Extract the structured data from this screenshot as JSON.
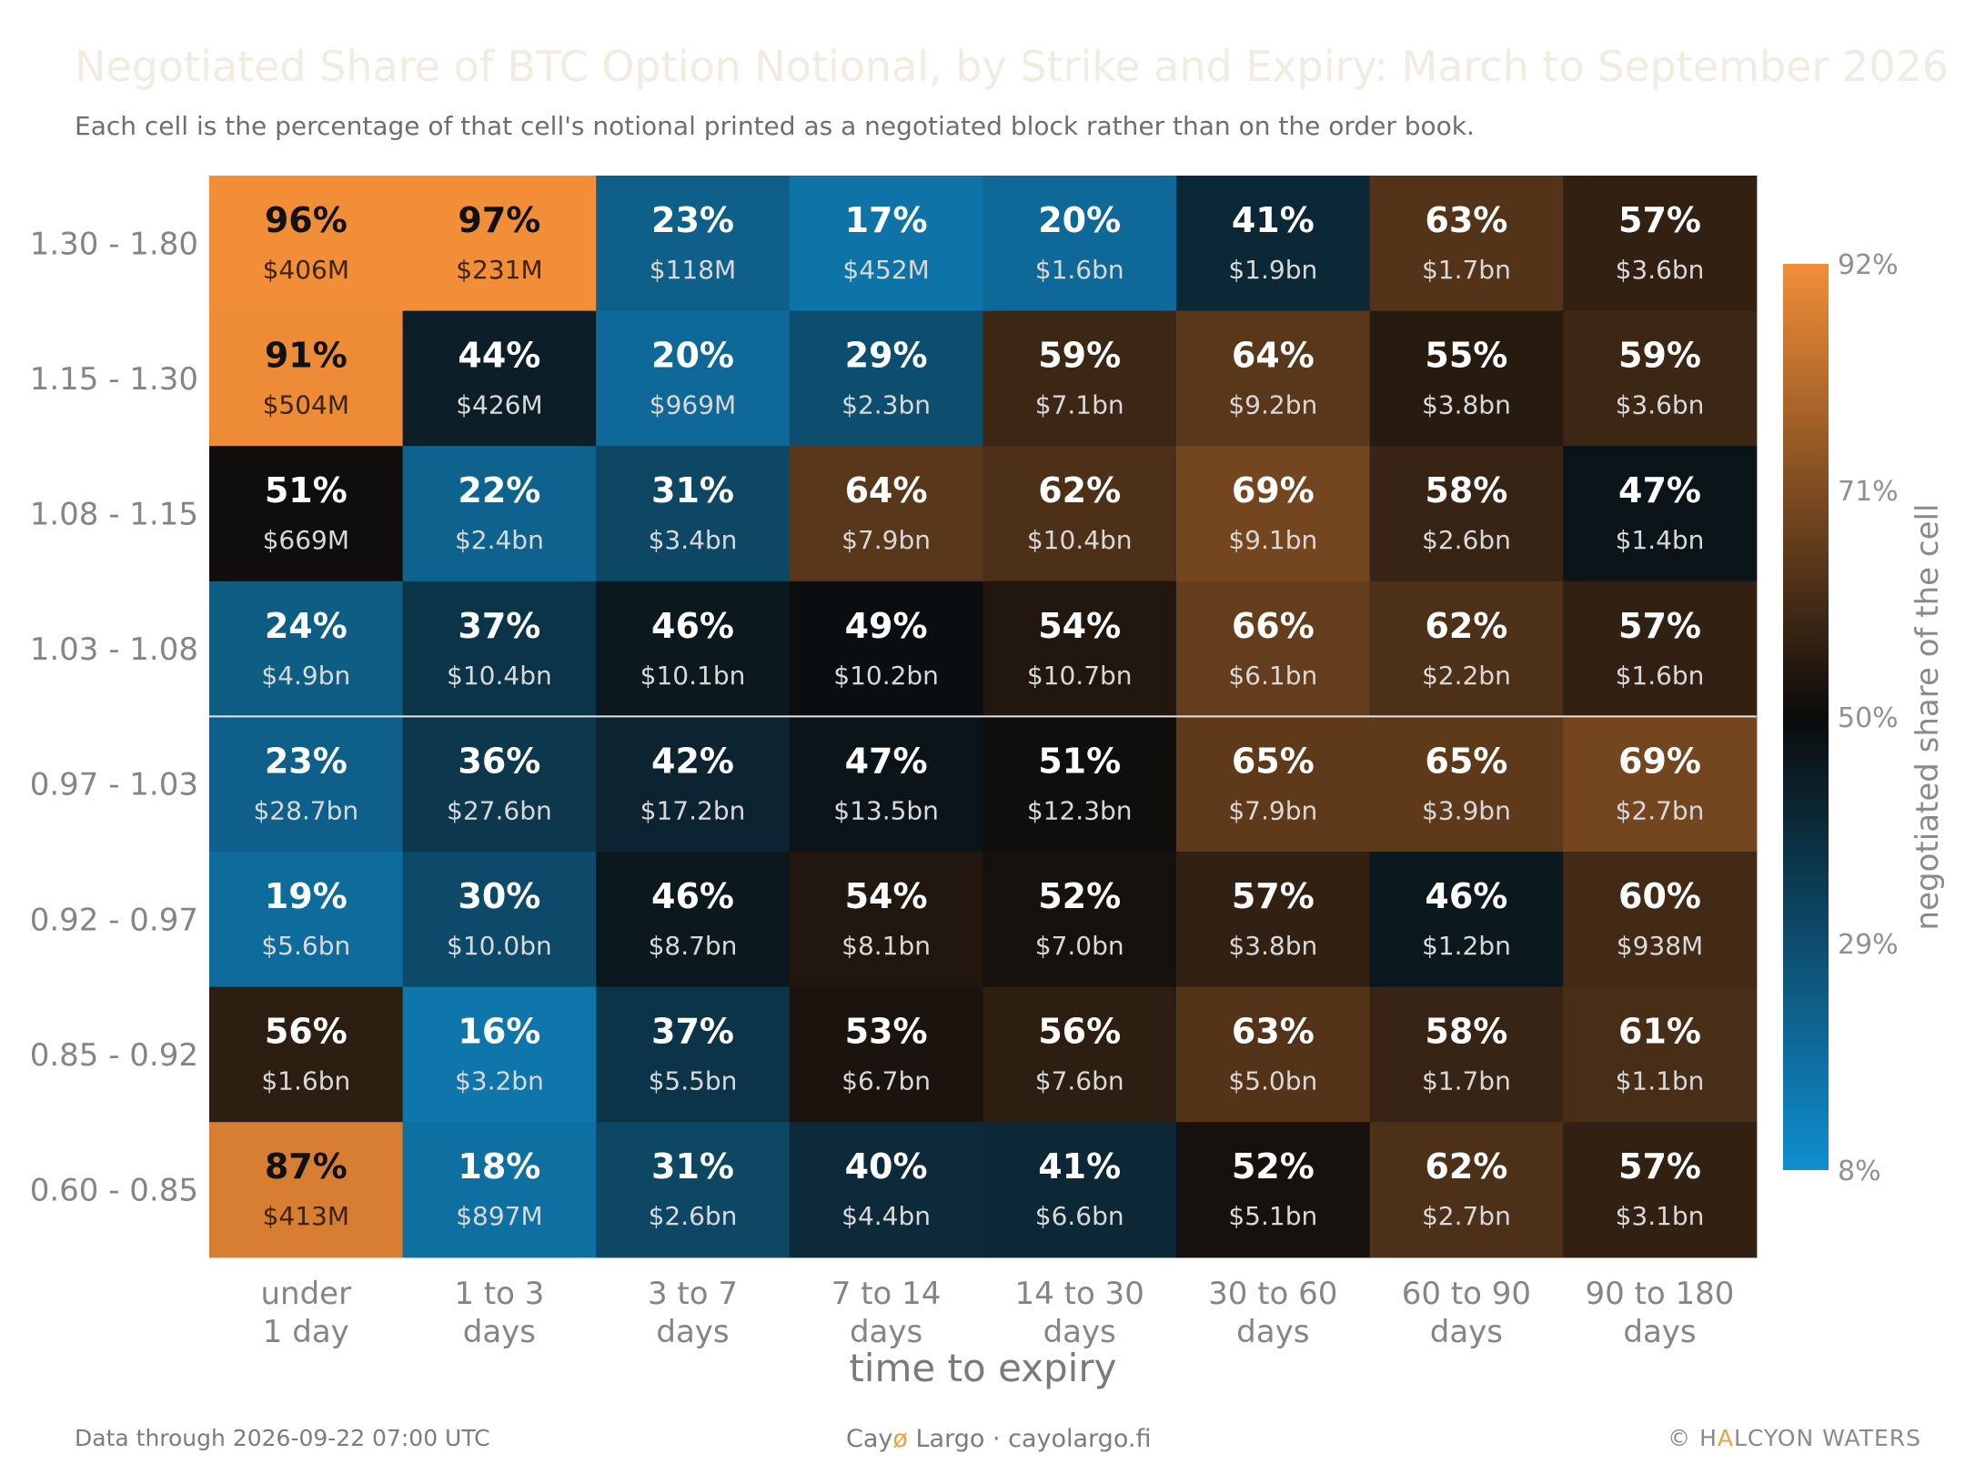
{
  "header": {
    "title": "Negotiated Share of BTC Option Notional, by Strike and Expiry: March to September 2026",
    "subtitle": "Each cell is the percentage of that cell's notional printed as a negotiated block rather than on the order book."
  },
  "chart_data": {
    "type": "heatmap",
    "title": "Negotiated Share of BTC Option Notional, by Strike and Expiry: March to September 2026",
    "subtitle": "Each cell is the percentage of that cell's notional printed as a negotiated block rather than on the order book.",
    "xlabel": "time to expiry",
    "ylabel": "",
    "x_categories": [
      [
        "under",
        "1 day"
      ],
      [
        "1 to 3",
        "days"
      ],
      [
        "3 to 7",
        "days"
      ],
      [
        "7 to 14",
        "days"
      ],
      [
        "14 to 30",
        "days"
      ],
      [
        "30 to 60",
        "days"
      ],
      [
        "60 to 90",
        "days"
      ],
      [
        "90 to 180",
        "days"
      ]
    ],
    "y_categories": [
      "1.30 - 1.80",
      "1.15 - 1.30",
      "1.08 - 1.15",
      "1.03 - 1.08",
      "0.97 - 1.03",
      "0.92 - 0.97",
      "0.85 - 0.92",
      "0.60 - 0.85"
    ],
    "values": [
      [
        96,
        97,
        23,
        17,
        20,
        41,
        63,
        57
      ],
      [
        91,
        44,
        20,
        29,
        59,
        64,
        55,
        59
      ],
      [
        51,
        22,
        31,
        64,
        62,
        69,
        58,
        47
      ],
      [
        24,
        37,
        46,
        49,
        54,
        66,
        62,
        57
      ],
      [
        23,
        36,
        42,
        47,
        51,
        65,
        65,
        69
      ],
      [
        19,
        30,
        46,
        54,
        52,
        57,
        46,
        60
      ],
      [
        56,
        16,
        37,
        53,
        56,
        63,
        58,
        61
      ],
      [
        87,
        18,
        31,
        40,
        41,
        52,
        62,
        57
      ]
    ],
    "value_labels": [
      [
        "96%",
        "97%",
        "23%",
        "17%",
        "20%",
        "41%",
        "63%",
        "57%"
      ],
      [
        "91%",
        "44%",
        "20%",
        "29%",
        "59%",
        "64%",
        "55%",
        "59%"
      ],
      [
        "51%",
        "22%",
        "31%",
        "64%",
        "62%",
        "69%",
        "58%",
        "47%"
      ],
      [
        "24%",
        "37%",
        "46%",
        "49%",
        "54%",
        "66%",
        "62%",
        "57%"
      ],
      [
        "23%",
        "36%",
        "42%",
        "47%",
        "51%",
        "65%",
        "65%",
        "69%"
      ],
      [
        "19%",
        "30%",
        "46%",
        "54%",
        "52%",
        "57%",
        "46%",
        "60%"
      ],
      [
        "56%",
        "16%",
        "37%",
        "53%",
        "56%",
        "63%",
        "58%",
        "61%"
      ],
      [
        "87%",
        "18%",
        "31%",
        "40%",
        "41%",
        "52%",
        "62%",
        "57%"
      ]
    ],
    "notional_labels": [
      [
        "$406M",
        "$231M",
        "$118M",
        "$452M",
        "$1.6bn",
        "$1.9bn",
        "$1.7bn",
        "$3.6bn"
      ],
      [
        "$504M",
        "$426M",
        "$969M",
        "$2.3bn",
        "$7.1bn",
        "$9.2bn",
        "$3.8bn",
        "$3.6bn"
      ],
      [
        "$669M",
        "$2.4bn",
        "$3.4bn",
        "$7.9bn",
        "$10.4bn",
        "$9.1bn",
        "$2.6bn",
        "$1.4bn"
      ],
      [
        "$4.9bn",
        "$10.4bn",
        "$10.1bn",
        "$10.2bn",
        "$10.7bn",
        "$6.1bn",
        "$2.2bn",
        "$1.6bn"
      ],
      [
        "$28.7bn",
        "$27.6bn",
        "$17.2bn",
        "$13.5bn",
        "$12.3bn",
        "$7.9bn",
        "$3.9bn",
        "$2.7bn"
      ],
      [
        "$5.6bn",
        "$10.0bn",
        "$8.7bn",
        "$8.1bn",
        "$7.0bn",
        "$3.8bn",
        "$1.2bn",
        "$938M"
      ],
      [
        "$1.6bn",
        "$3.2bn",
        "$5.5bn",
        "$6.7bn",
        "$7.6bn",
        "$5.0bn",
        "$1.7bn",
        "$1.1bn"
      ],
      [
        "$413M",
        "$897M",
        "$2.6bn",
        "$4.4bn",
        "$6.6bn",
        "$5.1bn",
        "$2.7bn",
        "$3.1bn"
      ]
    ],
    "highlight_boundary_between_rows": [
      3,
      4
    ],
    "colorbar": {
      "label": "negotiated share of the cell",
      "min": 8,
      "max": 92,
      "ticks": [
        92,
        71,
        50,
        29,
        8
      ],
      "tick_labels": [
        "92%",
        "71%",
        "50%",
        "29%",
        "8%"
      ],
      "color_low": "#0f8fd0",
      "color_mid": "#0b0b0b",
      "color_high": "#f28e38"
    },
    "grid": false
  },
  "footer": {
    "data_note": "Data through 2026-09-22 07:00 UTC",
    "brand_pre": "Cay",
    "brand_slash": "ø",
    "brand_post": " Largo  ·  cayolargo.fi",
    "credit_pre": "© H",
    "credit_accent": "A",
    "credit_post": "LCYON WATERS"
  }
}
